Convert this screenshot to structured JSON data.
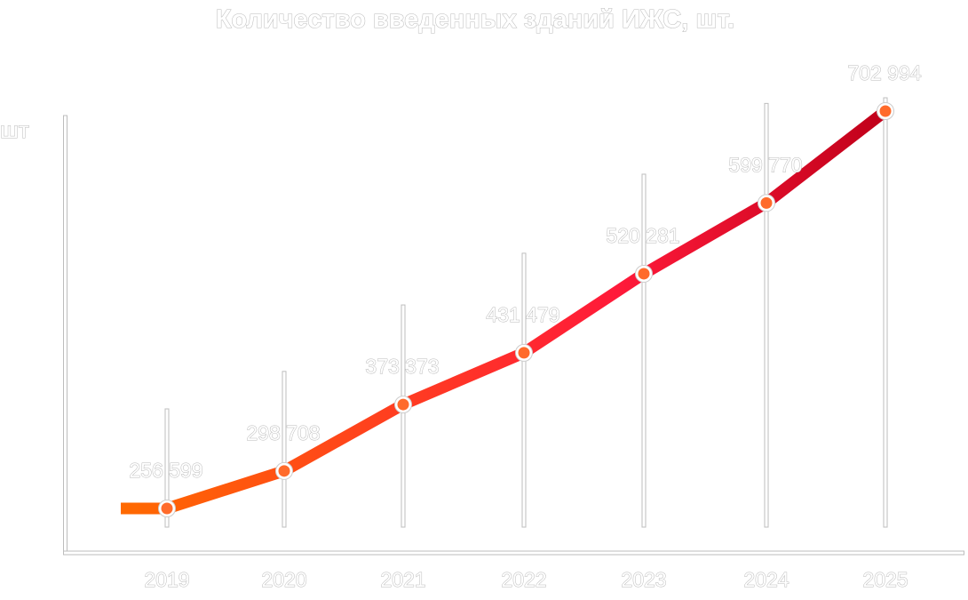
{
  "chart_data": {
    "type": "line",
    "title": "Количество введенных зданий ИЖС, шт.",
    "ylabel": "шт",
    "xlabel": "",
    "categories": [
      "2019",
      "2020",
      "2021",
      "2022",
      "2023",
      "2024",
      "2025"
    ],
    "values": [
      256599,
      298708,
      373373,
      431479,
      520281,
      599770,
      702994
    ],
    "data_labels": [
      "256 599",
      "298 708",
      "373 373",
      "431 479",
      "520 281",
      "599 770",
      "702 994"
    ],
    "grid": false,
    "legend": "none",
    "colors": {
      "line_start": "#ff6a00",
      "line_mid": "#ff1a3a",
      "line_end": "#c0001a",
      "marker": "#ff6b2b",
      "text_outline": "#b8b8b8"
    }
  }
}
